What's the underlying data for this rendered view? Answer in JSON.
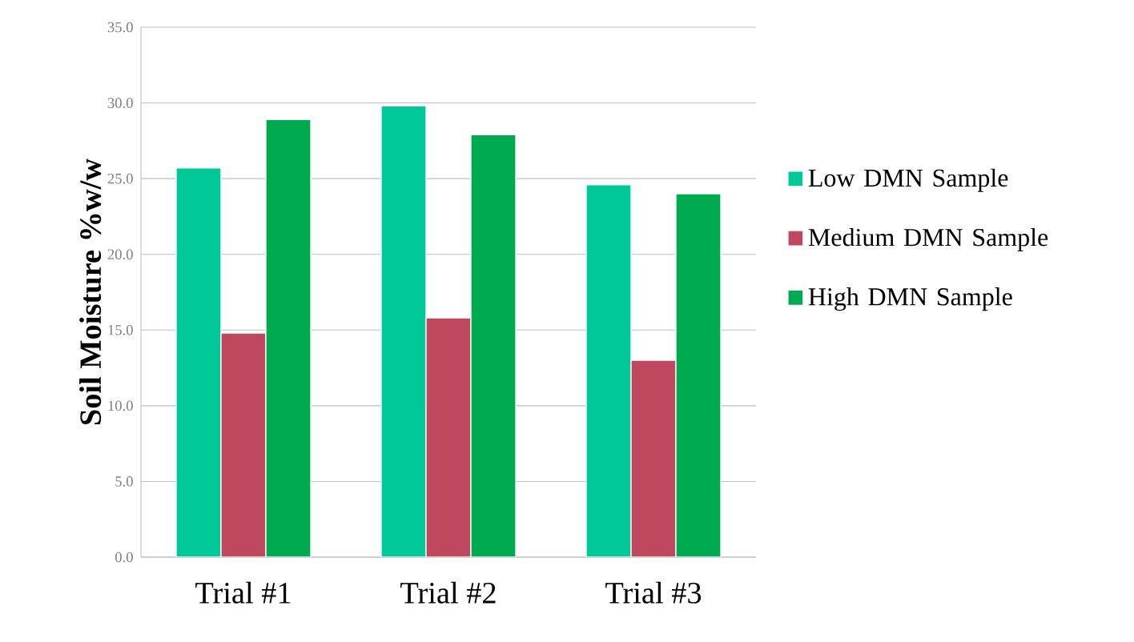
{
  "chart_data": {
    "type": "bar",
    "ylabel": "Soil Moisture %w/w",
    "categories": [
      "Trial #1",
      "Trial #2",
      "Trial #3"
    ],
    "series": [
      {
        "name": "Low DMN Sample",
        "color": "#00c896",
        "values": [
          25.7,
          29.8,
          24.6
        ]
      },
      {
        "name": "Medium DMN Sample",
        "color": "#c0485e",
        "values": [
          14.8,
          15.8,
          13.0
        ]
      },
      {
        "name": "High DMN Sample",
        "color": "#00aa50",
        "values": [
          28.9,
          27.9,
          24.0
        ]
      }
    ],
    "ylim": [
      0,
      35
    ],
    "yticks": [
      {
        "value": 0,
        "label": "0.0"
      },
      {
        "value": 5,
        "label": "5.0"
      },
      {
        "value": 10,
        "label": "10.0"
      },
      {
        "value": 15,
        "label": "15.0"
      },
      {
        "value": 20,
        "label": "20.0"
      },
      {
        "value": 25,
        "label": "25.0"
      },
      {
        "value": 30,
        "label": "30.0"
      },
      {
        "value": 35,
        "label": "35.0"
      }
    ],
    "grid": "y",
    "legend": "right"
  }
}
